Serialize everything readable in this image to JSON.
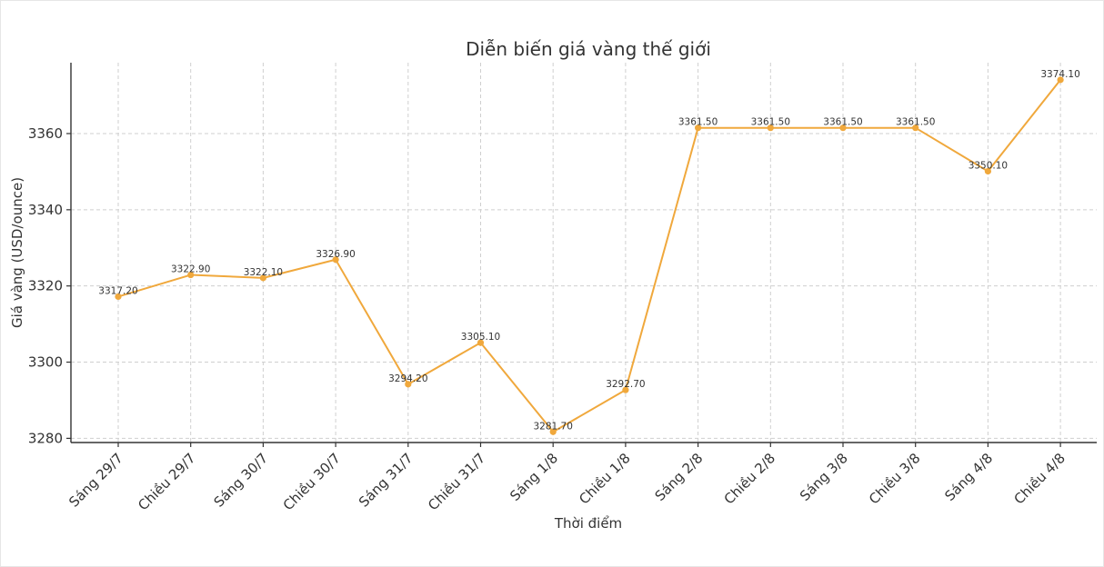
{
  "chart_data": {
    "type": "line",
    "title": "Diễn biến giá vàng thế giới",
    "xlabel": "Thời điểm",
    "ylabel": "Giá vàng (USD/ounce)",
    "categories": [
      "Sáng 29/7",
      "Chiều 29/7",
      "Sáng 30/7",
      "Chiều 30/7",
      "Sáng 31/7",
      "Chiều 31/7",
      "Sáng 1/8",
      "Chiều 1/8",
      "Sáng 2/8",
      "Chiều 2/8",
      "Sáng 3/8",
      "Chiều 3/8",
      "Sáng 4/8",
      "Chiều 4/8"
    ],
    "values": [
      3317.2,
      3322.9,
      3322.1,
      3326.9,
      3294.2,
      3305.1,
      3281.7,
      3292.7,
      3361.5,
      3361.5,
      3361.5,
      3361.5,
      3350.1,
      3374.1
    ],
    "value_labels": [
      "3317.20",
      "3322.90",
      "3322.10",
      "3326.90",
      "3294.20",
      "3305.10",
      "3281.70",
      "3292.70",
      "3361.50",
      "3361.50",
      "3361.50",
      "3361.50",
      "3350.10",
      "3374.10"
    ],
    "yticks": [
      3280,
      3300,
      3320,
      3340,
      3360
    ],
    "ylim": [
      3278.9,
      3378.6
    ],
    "grid": true,
    "line_color": "#f0a83c"
  }
}
